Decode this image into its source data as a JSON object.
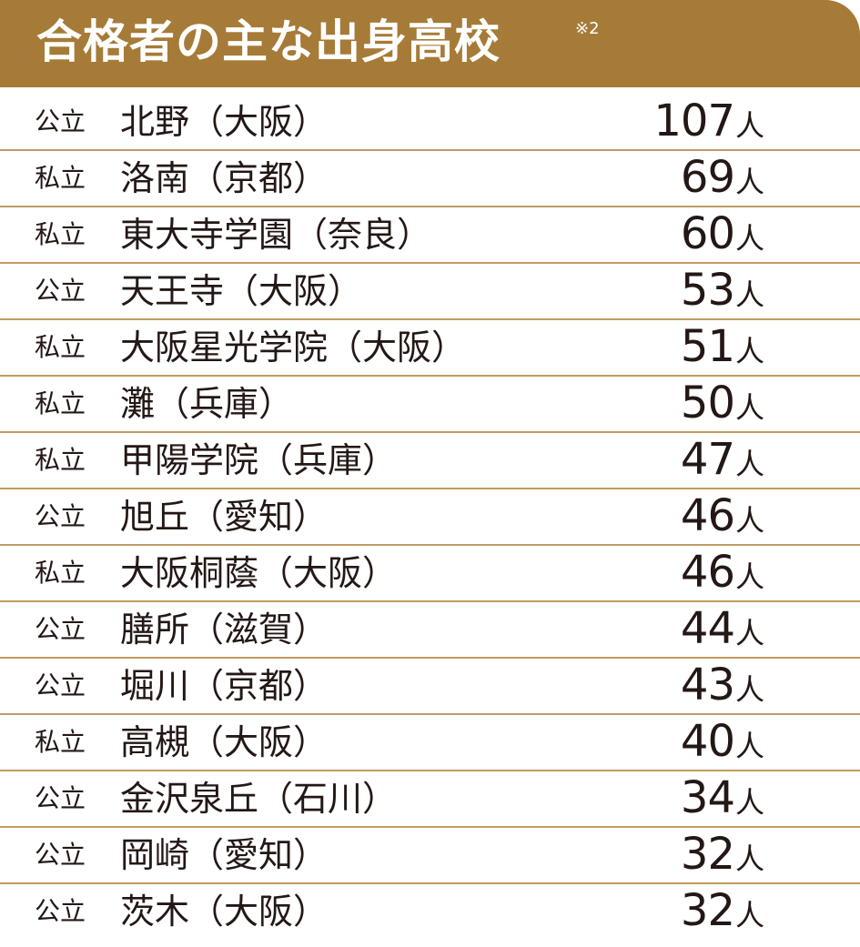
{
  "header": {
    "title": "合格者の主な出身高校",
    "note": "※2",
    "background_color": "#a67b38",
    "text_color": "#ffffff"
  },
  "divider_color": "#c29a60",
  "schools": [
    {
      "type": "公立",
      "name": "北野（大阪）",
      "count": "107",
      "unit": "人"
    },
    {
      "type": "私立",
      "name": "洛南（京都）",
      "count": "69",
      "unit": "人"
    },
    {
      "type": "私立",
      "name": "東大寺学園（奈良）",
      "count": "60",
      "unit": "人"
    },
    {
      "type": "公立",
      "name": "天王寺（大阪）",
      "count": "53",
      "unit": "人"
    },
    {
      "type": "私立",
      "name": "大阪星光学院（大阪）",
      "count": "51",
      "unit": "人"
    },
    {
      "type": "私立",
      "name": "灘（兵庫）",
      "count": "50",
      "unit": "人"
    },
    {
      "type": "私立",
      "name": "甲陽学院（兵庫）",
      "count": "47",
      "unit": "人"
    },
    {
      "type": "公立",
      "name": "旭丘（愛知）",
      "count": "46",
      "unit": "人"
    },
    {
      "type": "私立",
      "name": "大阪桐蔭（大阪）",
      "count": "46",
      "unit": "人"
    },
    {
      "type": "公立",
      "name": "膳所（滋賀）",
      "count": "44",
      "unit": "人"
    },
    {
      "type": "公立",
      "name": "堀川（京都）",
      "count": "43",
      "unit": "人"
    },
    {
      "type": "私立",
      "name": "高槻（大阪）",
      "count": "40",
      "unit": "人"
    },
    {
      "type": "公立",
      "name": "金沢泉丘（石川）",
      "count": "34",
      "unit": "人"
    },
    {
      "type": "公立",
      "name": "岡崎（愛知）",
      "count": "32",
      "unit": "人"
    },
    {
      "type": "公立",
      "name": "茨木（大阪）",
      "count": "32",
      "unit": "人"
    }
  ]
}
